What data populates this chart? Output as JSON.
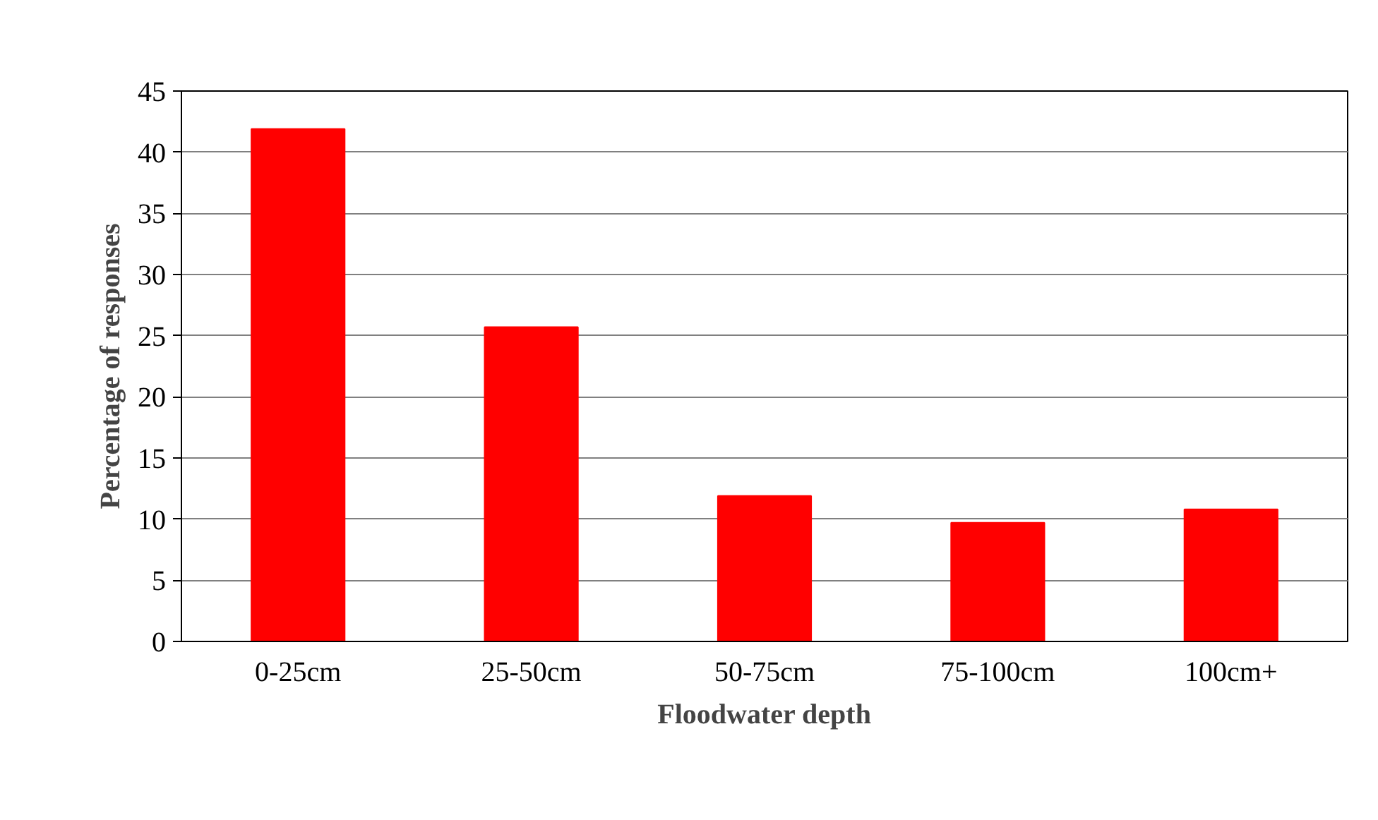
{
  "chart_data": {
    "type": "bar",
    "xlabel": "Floodwater depth",
    "ylabel": "Percentage of responses",
    "categories": [
      "0-25cm",
      "25-50cm",
      "50-75cm",
      "75-100cm",
      "100cm+"
    ],
    "values": [
      41.9,
      25.7,
      11.9,
      9.7,
      10.8
    ],
    "color": "#ff0000",
    "ylim": [
      0,
      45
    ],
    "yticks": [
      0,
      5,
      10,
      15,
      20,
      25,
      30,
      35,
      40,
      45
    ],
    "grid": "y"
  }
}
